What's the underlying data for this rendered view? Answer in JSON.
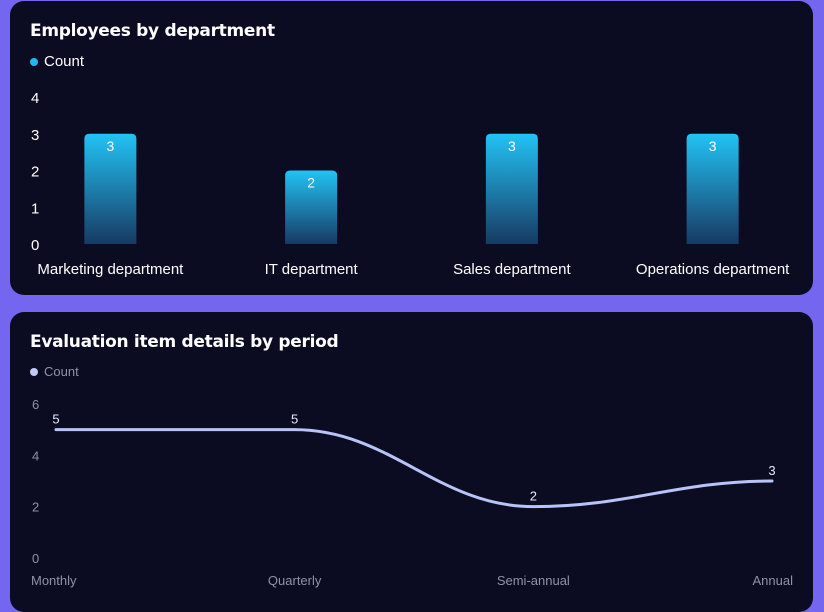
{
  "chart_data": [
    {
      "type": "bar",
      "title": "Employees by department",
      "categories": [
        "Marketing department",
        "IT department",
        "Sales department",
        "Operations department"
      ],
      "series": [
        {
          "name": "Count",
          "values": [
            3,
            2,
            3,
            3
          ]
        }
      ],
      "ylim": [
        0,
        4
      ],
      "yticks": [
        0,
        1,
        2,
        3,
        4
      ],
      "legend": "top-left",
      "grid": false,
      "colors": {
        "bar_top": "#22c3f5",
        "bar_bottom": "#173a63",
        "legend_dot": "#22b7f0",
        "text": "#ffffff"
      }
    },
    {
      "type": "line",
      "title": "Evaluation item details by period",
      "categories": [
        "Monthly",
        "Quarterly",
        "Semi-annual",
        "Annual"
      ],
      "series": [
        {
          "name": "Count",
          "values": [
            5,
            5,
            2,
            3
          ]
        }
      ],
      "ylim": [
        0,
        6
      ],
      "yticks": [
        0,
        2,
        4,
        6
      ],
      "legend": "top-left",
      "grid": false,
      "smooth": true,
      "colors": {
        "line": "#b9c3f7",
        "legend_dot": "#c3c9f5",
        "axis_text": "#8e91a8",
        "label_text": "#e6e8f5"
      }
    }
  ]
}
